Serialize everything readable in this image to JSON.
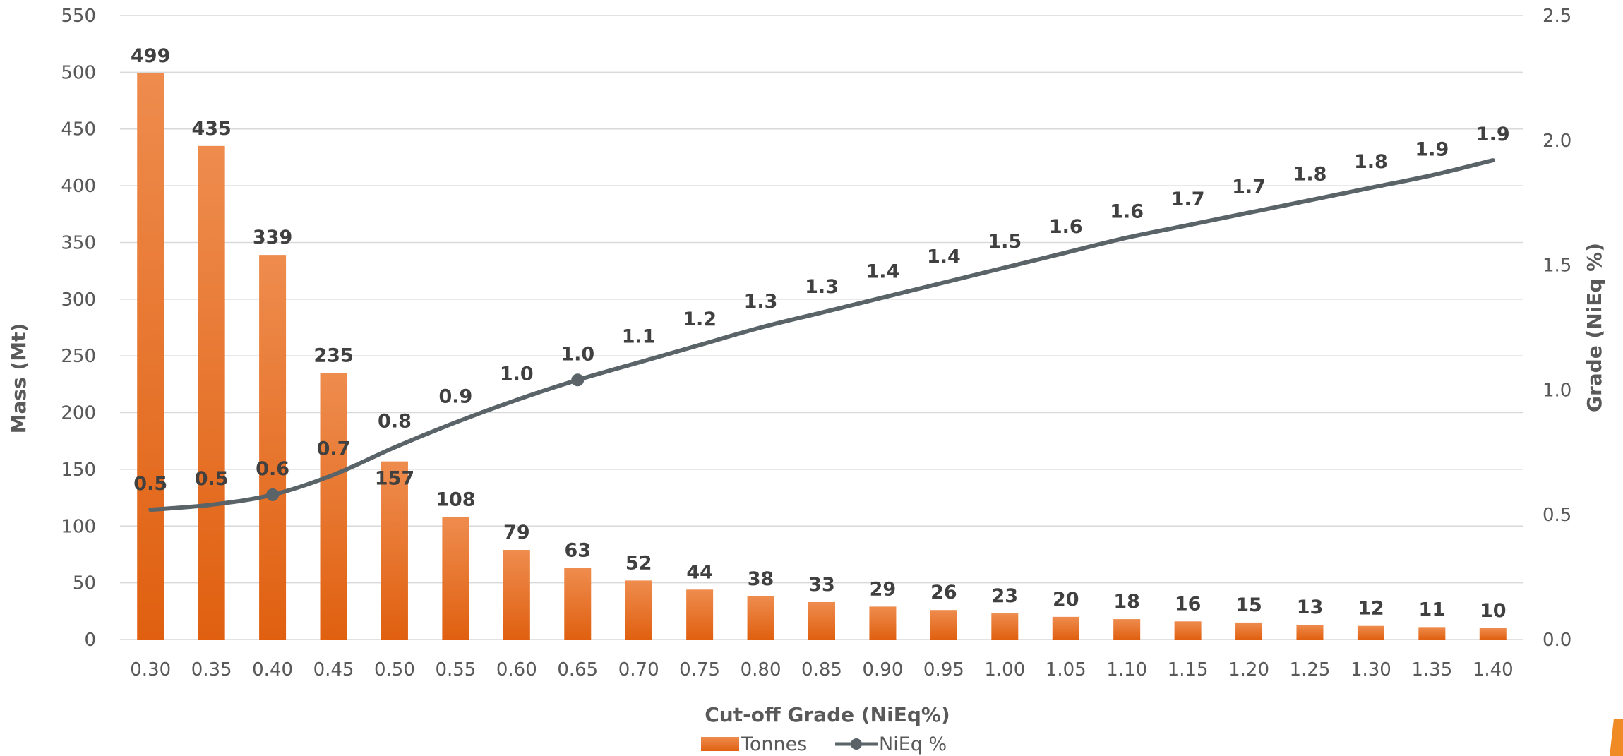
{
  "chart_data": {
    "type": "bar",
    "categories": [
      "0.30",
      "0.35",
      "0.40",
      "0.45",
      "0.50",
      "0.55",
      "0.60",
      "0.65",
      "0.70",
      "0.75",
      "0.80",
      "0.85",
      "0.90",
      "0.95",
      "1.00",
      "1.05",
      "1.10",
      "1.15",
      "1.20",
      "1.25",
      "1.30",
      "1.35",
      "1.40"
    ],
    "series": [
      {
        "name": "Tonnes",
        "type": "bar",
        "axis": "left",
        "color": "#E8711F",
        "values": [
          499,
          435,
          339,
          235,
          157,
          108,
          79,
          63,
          52,
          44,
          38,
          33,
          29,
          26,
          23,
          20,
          18,
          16,
          15,
          13,
          12,
          11,
          10
        ],
        "labels": [
          "499",
          "435",
          "339",
          "235",
          "157",
          "108",
          "79",
          "63",
          "52",
          "44",
          "38",
          "33",
          "29",
          "26",
          "23",
          "20",
          "18",
          "16",
          "15",
          "13",
          "12",
          "11",
          "10"
        ]
      },
      {
        "name": "NiEq %",
        "type": "line",
        "axis": "right",
        "color": "#5A6468",
        "values": [
          0.52,
          0.54,
          0.58,
          0.66,
          0.77,
          0.87,
          0.96,
          1.04,
          1.11,
          1.18,
          1.25,
          1.31,
          1.37,
          1.43,
          1.49,
          1.55,
          1.61,
          1.66,
          1.71,
          1.76,
          1.81,
          1.86,
          1.92
        ],
        "labels": [
          "0.5",
          "0.5",
          "0.6",
          "0.7",
          "0.8",
          "0.9",
          "1.0",
          "1.0",
          "1.1",
          "1.2",
          "1.3",
          "1.3",
          "1.4",
          "1.4",
          "1.5",
          "1.6",
          "1.6",
          "1.7",
          "1.7",
          "1.8",
          "1.8",
          "1.9",
          "1.9"
        ],
        "markers_at": [
          2,
          7
        ]
      }
    ],
    "xlabel": "Cut-off Grade (NiEq%)",
    "ylabel": "Mass (Mt)",
    "y2label": "Grade (NiEq %)",
    "ylim": [
      0,
      550
    ],
    "yticks": [
      "0",
      "50",
      "100",
      "150",
      "200",
      "250",
      "300",
      "350",
      "400",
      "450",
      "500",
      "550"
    ],
    "y2lim": [
      0,
      2.5
    ],
    "y2ticks": [
      "0.0",
      "0.5",
      "1.0",
      "1.5",
      "2.0",
      "2.5"
    ],
    "grid": true,
    "legend": "bottom-center"
  },
  "colors": {
    "accent": "#F08A24"
  }
}
